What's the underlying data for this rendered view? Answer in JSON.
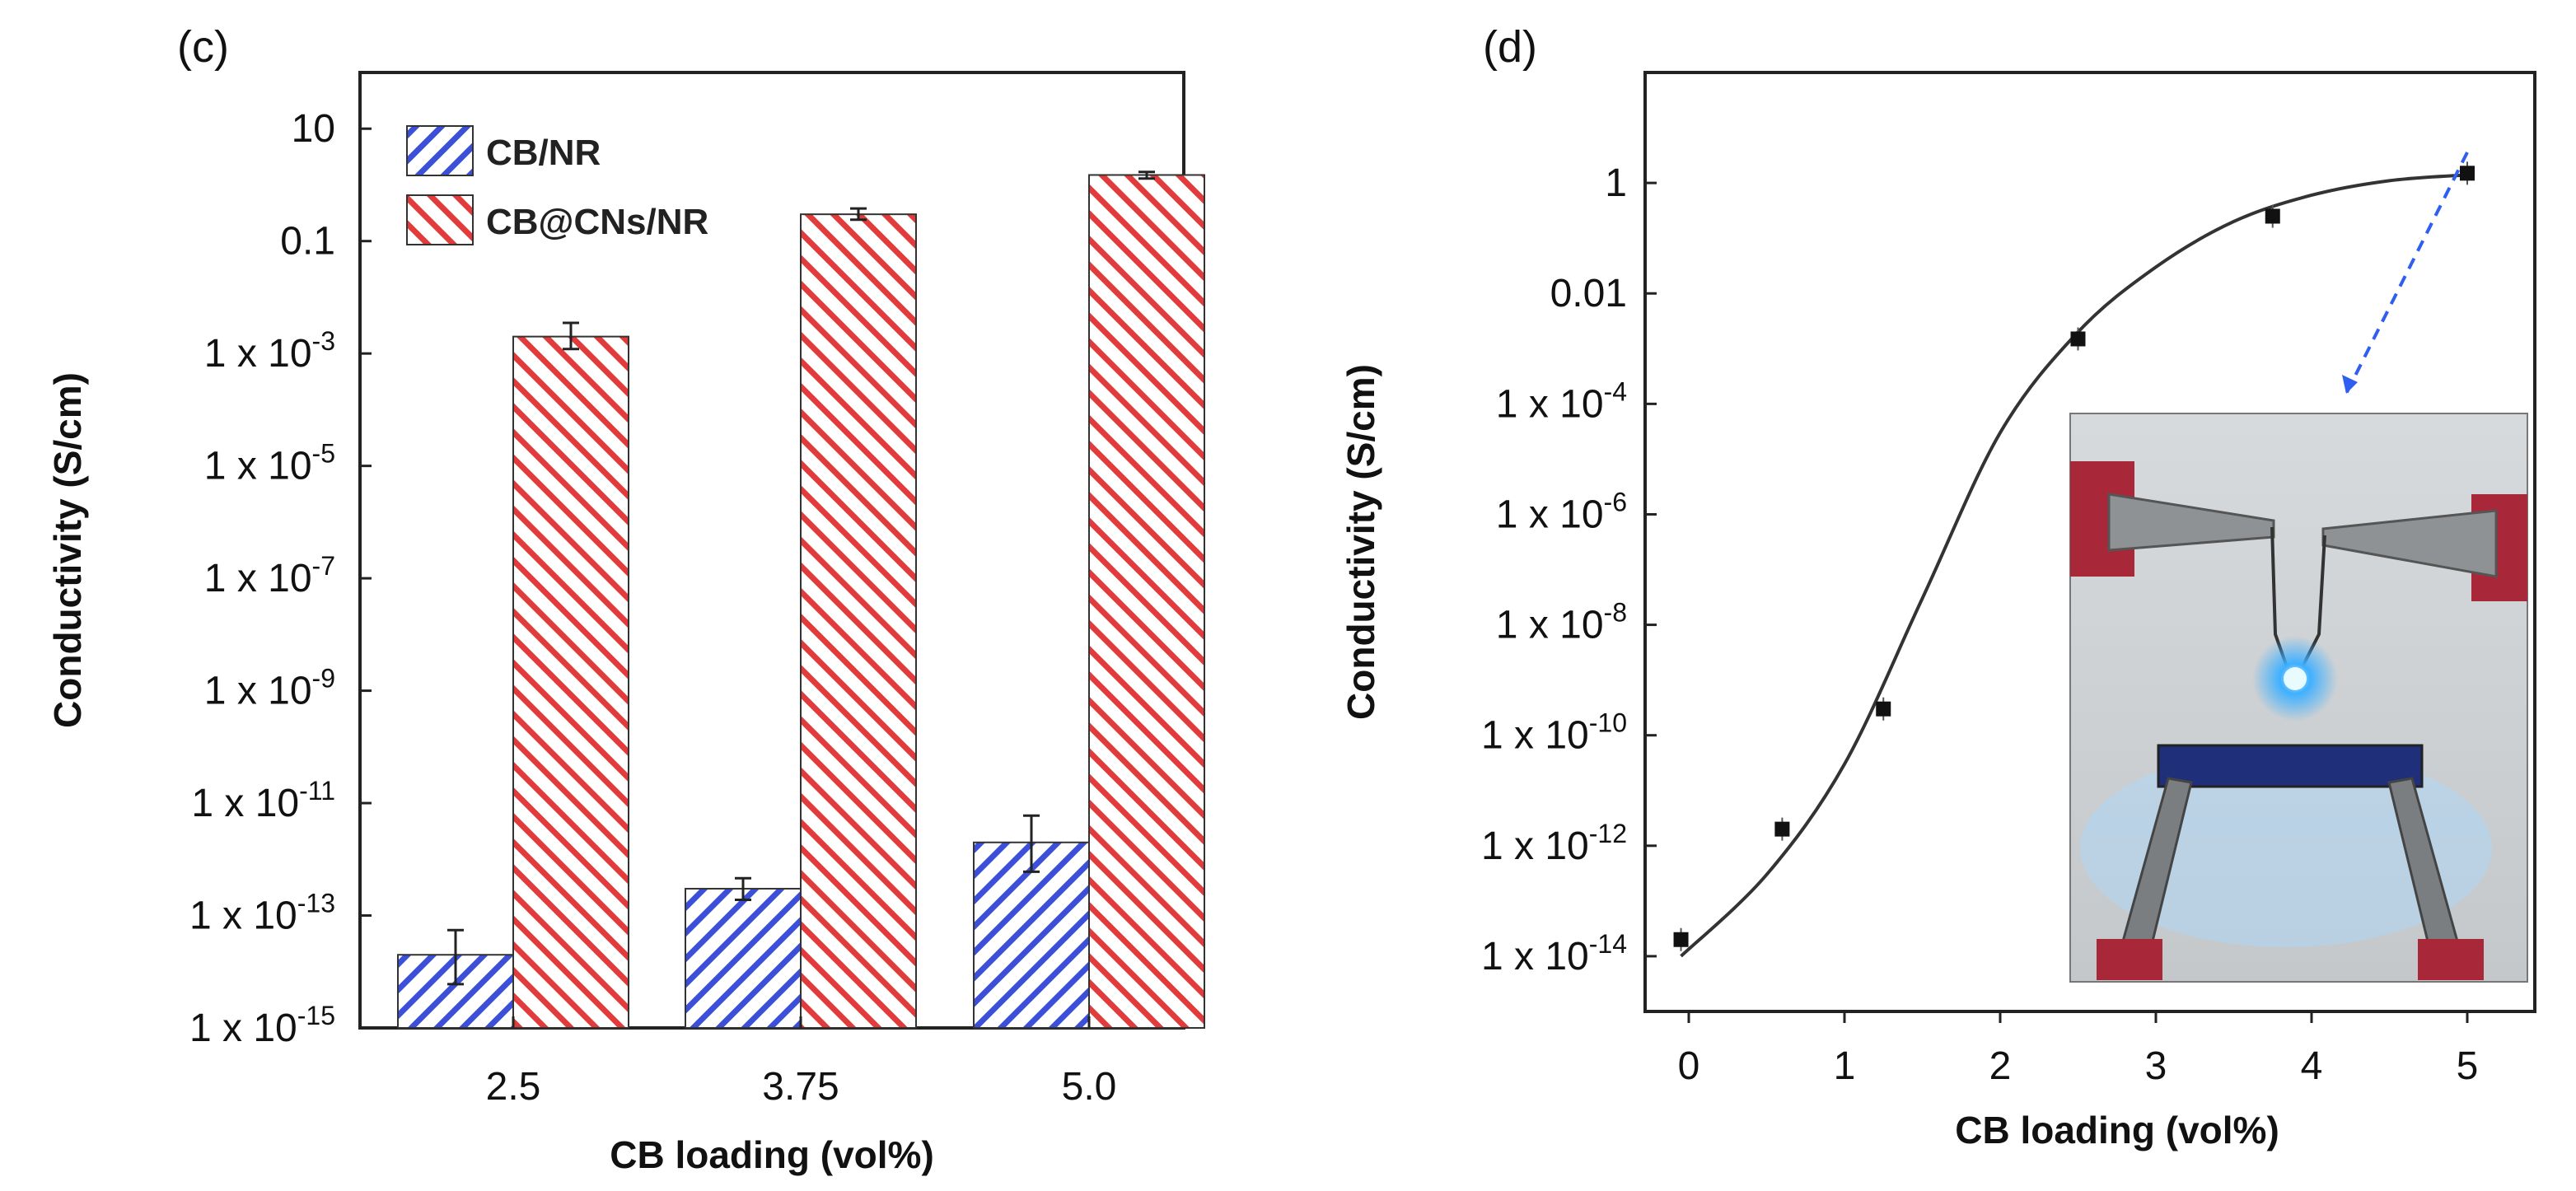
{
  "chart_data": [
    {
      "panel_label": "(c)",
      "type": "bar",
      "xlabel": "CB loading (vol%)",
      "ylabel": "Conductivity (S/cm)",
      "y_scale": "log",
      "ylim": [
        1e-15,
        100
      ],
      "categories": [
        "2.5",
        "3.75",
        "5.0"
      ],
      "y_ticks": [
        {
          "value": 10,
          "base": "10",
          "exp": ""
        },
        {
          "value": 0.1,
          "base": "0.1",
          "exp": ""
        },
        {
          "value": 0.001,
          "base": "1 x 10",
          "exp": "-3"
        },
        {
          "value": 1e-05,
          "base": "1 x 10",
          "exp": "-5"
        },
        {
          "value": 1e-07,
          "base": "1 x 10",
          "exp": "-7"
        },
        {
          "value": 1e-09,
          "base": "1 x 10",
          "exp": "-9"
        },
        {
          "value": 1e-11,
          "base": "1 x 10",
          "exp": "-11"
        },
        {
          "value": 1e-13,
          "base": "1 x 10",
          "exp": "-13"
        },
        {
          "value": 1e-15,
          "base": "1 x 10",
          "exp": "-15"
        }
      ],
      "series": [
        {
          "name": "CB/NR",
          "color": "#3b4fd8",
          "values": [
            2e-14,
            3e-13,
            2e-12
          ],
          "err_low": [
            6e-15,
            1.9e-13,
            6e-13
          ],
          "err_high": [
            5.5e-14,
            4.6e-13,
            6e-12
          ]
        },
        {
          "name": "CB@CNs/NR",
          "color": "#e23b3b",
          "values": [
            0.002,
            0.3,
            1.5
          ],
          "err_low": [
            0.0012,
            0.24,
            1.3
          ],
          "err_high": [
            0.0035,
            0.38,
            1.7
          ]
        }
      ]
    },
    {
      "panel_label": "(d)",
      "type": "scatter",
      "xlabel": "CB loading (vol%)",
      "ylabel": "Conductivity (S/cm)",
      "y_scale": "log",
      "xlim": [
        -0.3,
        5.4
      ],
      "ylim": [
        1e-15,
        100
      ],
      "x_ticks": [
        "0",
        "1",
        "2",
        "3",
        "4",
        "5"
      ],
      "y_ticks": [
        {
          "value": 1,
          "base": "1",
          "exp": ""
        },
        {
          "value": 0.01,
          "base": "0.01",
          "exp": ""
        },
        {
          "value": 0.0001,
          "base": "1 x 10",
          "exp": "-4"
        },
        {
          "value": 1e-06,
          "base": "1 x 10",
          "exp": "-6"
        },
        {
          "value": 1e-08,
          "base": "1 x 10",
          "exp": "-8"
        },
        {
          "value": 1e-10,
          "base": "1 x 10",
          "exp": "-10"
        },
        {
          "value": 1e-12,
          "base": "1 x 10",
          "exp": "-12"
        },
        {
          "value": 1e-14,
          "base": "1 x 10",
          "exp": "-14"
        }
      ],
      "points": [
        {
          "x": -0.05,
          "y": 2e-14
        },
        {
          "x": 0.6,
          "y": 2e-12
        },
        {
          "x": 1.25,
          "y": 3e-10
        },
        {
          "x": 2.5,
          "y": 0.0015
        },
        {
          "x": 3.75,
          "y": 0.25
        },
        {
          "x": 5.0,
          "y": 1.5
        }
      ],
      "fit_curve": [
        {
          "x": -0.05,
          "y": 1e-14
        },
        {
          "x": 0.5,
          "y": 3e-13
        },
        {
          "x": 1.0,
          "y": 3e-11
        },
        {
          "x": 1.5,
          "y": 3e-08
        },
        {
          "x": 2.0,
          "y": 3e-05
        },
        {
          "x": 2.5,
          "y": 0.002
        },
        {
          "x": 3.0,
          "y": 0.03
        },
        {
          "x": 3.5,
          "y": 0.2
        },
        {
          "x": 4.0,
          "y": 0.6
        },
        {
          "x": 4.5,
          "y": 1.1
        },
        {
          "x": 5.0,
          "y": 1.4
        }
      ],
      "annotation": "Inset photo: lit blue LED connected through composite strip with alligator clips"
    }
  ]
}
